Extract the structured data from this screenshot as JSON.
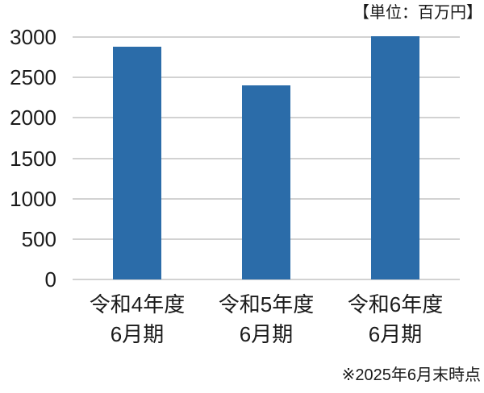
{
  "unit_label": "【単位：百万円】",
  "footnote": "※2025年6月末時点",
  "colors": {
    "bar": "#2b6ca9",
    "gridline": "#d2d2d2",
    "text": "#1a1a1a"
  },
  "chart_data": {
    "type": "bar",
    "title": "",
    "unit_annotation": "【単位：百万円】",
    "footnote_annotation": "※2025年6月末時点",
    "categories": [
      [
        "令和4年度",
        "6月期"
      ],
      [
        "令和5年度",
        "6月期"
      ],
      [
        "令和6年度",
        "6月期"
      ]
    ],
    "values": [
      2880,
      2400,
      3010
    ],
    "xlabel": "",
    "ylabel": "",
    "yticks": [
      0,
      500,
      1000,
      1500,
      2000,
      2500,
      3000
    ],
    "ylim": [
      0,
      3000
    ],
    "grid": true,
    "legend_position": "none",
    "bar_color": "#2b6ca9"
  }
}
